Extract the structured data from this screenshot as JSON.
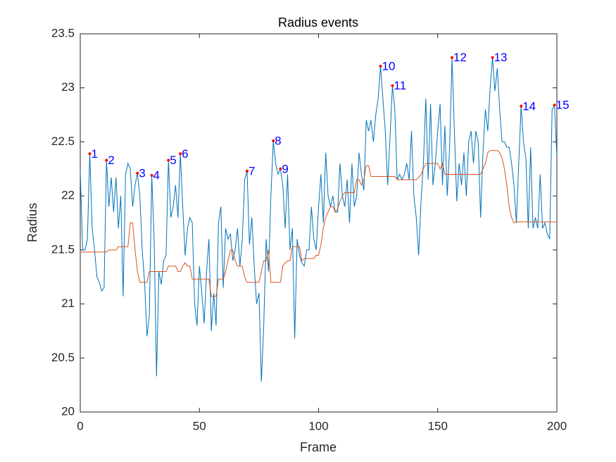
{
  "chart_data": {
    "type": "line",
    "title": "Radius events",
    "x_label": "Frame",
    "y_label": "Radius",
    "xlim": [
      0,
      200
    ],
    "xticks": [
      0,
      50,
      100,
      150,
      200
    ],
    "ylim": [
      20,
      23.5
    ],
    "yticks": [
      20,
      20.5,
      21,
      21.5,
      22,
      22.5,
      23,
      23.5
    ],
    "x": [
      0,
      1,
      2,
      3,
      4,
      5,
      6,
      7,
      8,
      9,
      10,
      11,
      12,
      13,
      14,
      15,
      16,
      17,
      18,
      19,
      20,
      21,
      22,
      23,
      24,
      25,
      26,
      27,
      28,
      29,
      30,
      31,
      32,
      33,
      34,
      35,
      36,
      37,
      38,
      39,
      40,
      41,
      42,
      43,
      44,
      45,
      46,
      47,
      48,
      49,
      50,
      51,
      52,
      53,
      54,
      55,
      56,
      57,
      58,
      59,
      60,
      61,
      62,
      63,
      64,
      65,
      66,
      67,
      68,
      69,
      70,
      71,
      72,
      73,
      74,
      75,
      76,
      77,
      78,
      79,
      80,
      81,
      82,
      83,
      84,
      85,
      86,
      87,
      88,
      89,
      90,
      91,
      92,
      93,
      94,
      95,
      96,
      97,
      98,
      99,
      100,
      101,
      102,
      103,
      104,
      105,
      106,
      107,
      108,
      109,
      110,
      111,
      112,
      113,
      114,
      115,
      116,
      117,
      118,
      119,
      120,
      121,
      122,
      123,
      124,
      125,
      126,
      127,
      128,
      129,
      130,
      131,
      132,
      133,
      134,
      135,
      136,
      137,
      138,
      139,
      140,
      141,
      142,
      143,
      144,
      145,
      146,
      147,
      148,
      149,
      150,
      151,
      152,
      153,
      154,
      155,
      156,
      157,
      158,
      159,
      160,
      161,
      162,
      163,
      164,
      165,
      166,
      167,
      168,
      169,
      170,
      171,
      172,
      173,
      174,
      175,
      176,
      177,
      178,
      179,
      180,
      181,
      182,
      183,
      184,
      185,
      186,
      187,
      188,
      189,
      190,
      191,
      192,
      193,
      194,
      195,
      196,
      197,
      198,
      199,
      200
    ],
    "series": [
      {
        "color": "#0072bd",
        "values": [
          22.23,
          21.5,
          21.5,
          21.6,
          22.39,
          21.7,
          21.5,
          21.25,
          21.2,
          21.12,
          21.15,
          22.33,
          21.9,
          22.17,
          21.85,
          22.17,
          21.7,
          22.0,
          21.07,
          22.2,
          22.3,
          22.25,
          21.9,
          22.1,
          22.21,
          22.0,
          21.5,
          21.2,
          20.7,
          20.9,
          22.19,
          21.6,
          20.33,
          21.3,
          21.18,
          21.4,
          21.45,
          22.33,
          21.8,
          21.9,
          22.1,
          21.8,
          22.39,
          21.9,
          21.45,
          21.7,
          21.8,
          21.75,
          21.0,
          20.8,
          21.35,
          21.1,
          20.82,
          21.3,
          21.6,
          20.75,
          21.1,
          20.8,
          21.75,
          21.9,
          21.15,
          21.7,
          21.6,
          21.65,
          21.4,
          21.5,
          21.7,
          21.35,
          21.6,
          22.15,
          22.23,
          21.55,
          21.8,
          21.35,
          21.0,
          21.1,
          20.28,
          20.8,
          21.6,
          21.3,
          22.0,
          22.51,
          22.3,
          22.2,
          22.25,
          22.1,
          21.7,
          22.2,
          21.5,
          21.7,
          20.68,
          21.6,
          21.45,
          21.38,
          21.35,
          21.5,
          21.5,
          21.9,
          21.6,
          21.5,
          21.9,
          22.2,
          21.75,
          22.4,
          22.0,
          21.9,
          22.0,
          21.85,
          21.85,
          22.3,
          22.0,
          21.9,
          22.15,
          21.75,
          22.3,
          21.9,
          22.0,
          22.4,
          22.2,
          22.05,
          22.7,
          22.6,
          22.7,
          22.5,
          22.75,
          22.9,
          23.2,
          22.9,
          22.6,
          22.1,
          22.55,
          23.02,
          22.8,
          22.15,
          22.2,
          22.15,
          22.2,
          22.3,
          22.15,
          22.6,
          22.0,
          21.8,
          21.45,
          21.95,
          22.3,
          22.9,
          22.15,
          22.85,
          22.1,
          22.3,
          22.6,
          22.85,
          22.1,
          22.65,
          22.0,
          22.45,
          23.28,
          22.6,
          21.95,
          22.3,
          22.1,
          22.4,
          22.0,
          22.5,
          22.6,
          22.3,
          22.6,
          22.5,
          21.8,
          22.4,
          22.8,
          22.6,
          23.0,
          23.28,
          22.97,
          23.18,
          22.8,
          22.5,
          22.5,
          22.45,
          22.45,
          22.3,
          22.1,
          21.75,
          22.3,
          22.83,
          22.5,
          22.35,
          21.7,
          22.45,
          21.7,
          21.8,
          21.7,
          22.2,
          21.7,
          21.75,
          21.65,
          21.6,
          22.8,
          22.84,
          22.37
        ]
      },
      {
        "color": "#d95319",
        "values": [
          21.48,
          21.48,
          21.48,
          21.48,
          21.48,
          21.48,
          21.48,
          21.48,
          21.48,
          21.48,
          21.48,
          21.48,
          21.5,
          21.5,
          21.5,
          21.5,
          21.53,
          21.53,
          21.53,
          21.53,
          21.53,
          21.75,
          21.75,
          21.5,
          21.3,
          21.2,
          21.2,
          21.2,
          21.2,
          21.3,
          21.3,
          21.3,
          21.3,
          21.3,
          21.3,
          21.3,
          21.3,
          21.35,
          21.35,
          21.35,
          21.35,
          21.3,
          21.3,
          21.35,
          21.38,
          21.35,
          21.35,
          21.23,
          21.23,
          21.23,
          21.23,
          21.23,
          21.23,
          21.23,
          21.23,
          21.07,
          21.07,
          21.07,
          21.23,
          21.23,
          21.23,
          21.3,
          21.4,
          21.5,
          21.5,
          21.4,
          21.35,
          21.35,
          21.35,
          21.25,
          21.2,
          21.2,
          21.2,
          21.2,
          21.2,
          21.2,
          21.3,
          21.4,
          21.4,
          21.5,
          21.2,
          21.2,
          21.2,
          21.2,
          21.2,
          21.35,
          21.38,
          21.4,
          21.4,
          21.53,
          21.53,
          21.53,
          21.53,
          21.4,
          21.42,
          21.42,
          21.42,
          21.42,
          21.42,
          21.45,
          21.45,
          21.55,
          21.7,
          21.8,
          21.85,
          21.9,
          21.9,
          21.85,
          21.88,
          21.95,
          22.0,
          22.03,
          22.03,
          22.03,
          22.03,
          22.03,
          22.15,
          22.15,
          22.1,
          22.15,
          22.28,
          22.28,
          22.18,
          22.18,
          22.18,
          22.18,
          22.18,
          22.18,
          22.18,
          22.18,
          22.18,
          22.18,
          22.18,
          22.15,
          22.15,
          22.15,
          22.15,
          22.15,
          22.15,
          22.15,
          22.15,
          22.15,
          22.17,
          22.2,
          22.25,
          22.3,
          22.3,
          22.3,
          22.3,
          22.3,
          22.3,
          22.25,
          22.3,
          22.2,
          22.2,
          22.2,
          22.2,
          22.2,
          22.2,
          22.2,
          22.2,
          22.2,
          22.2,
          22.2,
          22.2,
          22.2,
          22.2,
          22.2,
          22.2,
          22.25,
          22.3,
          22.4,
          22.42,
          22.42,
          22.42,
          22.42,
          22.4,
          22.35,
          22.25,
          22.1,
          21.9,
          21.8,
          21.75,
          21.76,
          21.76,
          21.76,
          21.76,
          21.76,
          21.76,
          21.76,
          21.76,
          21.76,
          21.76,
          21.76,
          21.76,
          21.76,
          21.76,
          21.76,
          21.76,
          21.76,
          21.76
        ]
      }
    ],
    "events": {
      "marker_color": "#ff0000",
      "label_color": "#0000ff",
      "labels": [
        "1",
        "2",
        "3",
        "4",
        "5",
        "6",
        "7",
        "8",
        "9",
        "10",
        "11",
        "12",
        "13",
        "14",
        "15"
      ],
      "x": [
        4,
        11,
        24,
        30,
        37,
        42,
        70,
        81,
        84,
        126,
        131,
        156,
        173,
        185,
        199
      ],
      "y": [
        22.39,
        22.33,
        22.21,
        22.19,
        22.33,
        22.39,
        22.23,
        22.51,
        22.25,
        23.2,
        23.02,
        23.28,
        23.28,
        22.83,
        22.84
      ]
    }
  }
}
